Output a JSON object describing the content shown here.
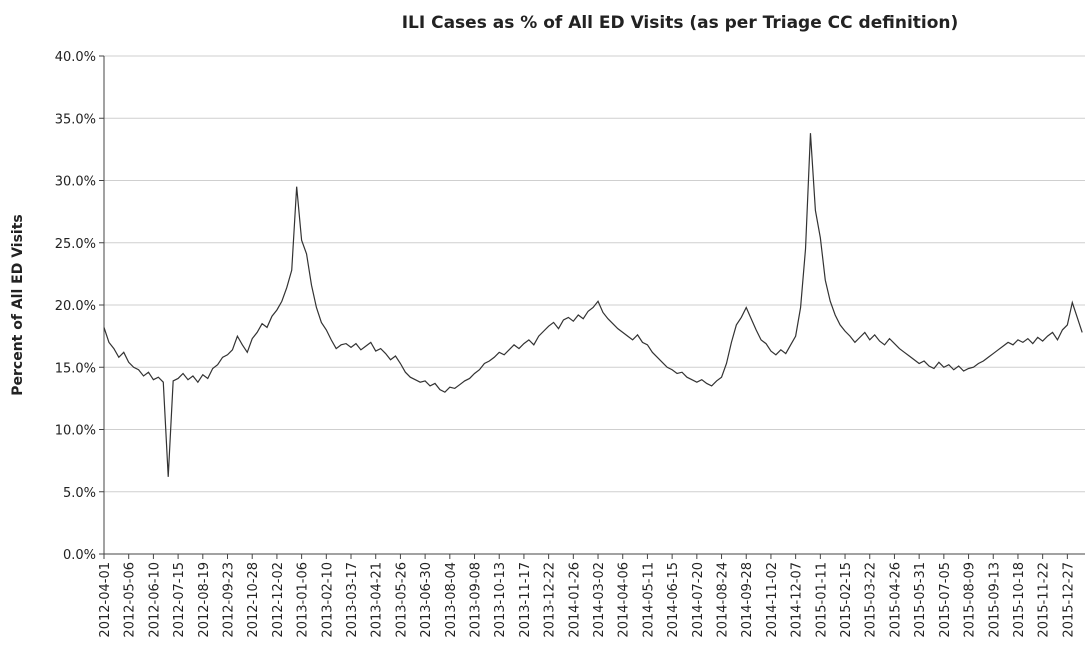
{
  "chart_data": {
    "type": "line",
    "title": "ILI Cases as % of All ED Visits (as per Triage CC definition)",
    "y_label": "Percent of All ED Visits",
    "color": "#333333",
    "grid": true,
    "ylim": [
      0,
      40
    ],
    "yticks": [
      {
        "value": 0,
        "label": "0.0%"
      },
      {
        "value": 5,
        "label": "5.0%"
      },
      {
        "value": 10,
        "label": "10.0%"
      },
      {
        "value": 15,
        "label": "15.0%"
      },
      {
        "value": 20,
        "label": "20.0%"
      },
      {
        "value": 25,
        "label": "25.0%"
      },
      {
        "value": 30,
        "label": "30.0%"
      },
      {
        "value": 35,
        "label": "35.0%"
      },
      {
        "value": 40,
        "label": "40.0%"
      }
    ],
    "xlim": [
      "2012-04-01",
      "2016-01-21"
    ],
    "xticks": [
      "2012-04-01",
      "2012-05-06",
      "2012-06-10",
      "2012-07-15",
      "2012-08-19",
      "2012-09-23",
      "2012-10-28",
      "2012-12-02",
      "2013-01-06",
      "2013-02-10",
      "2013-03-17",
      "2013-04-21",
      "2013-05-26",
      "2013-06-30",
      "2013-08-04",
      "2013-09-08",
      "2013-10-13",
      "2013-11-17",
      "2013-12-22",
      "2014-01-26",
      "2014-03-02",
      "2014-04-06",
      "2014-05-11",
      "2014-06-15",
      "2014-07-20",
      "2014-08-24",
      "2014-09-28",
      "2014-11-02",
      "2014-12-07",
      "2015-01-11",
      "2015-02-15",
      "2015-03-22",
      "2015-04-26",
      "2015-05-31",
      "2015-07-05",
      "2015-08-09",
      "2015-09-13",
      "2015-10-18",
      "2015-11-22",
      "2015-12-27"
    ],
    "x": [
      "2012-04-01",
      "2012-04-08",
      "2012-04-15",
      "2012-04-22",
      "2012-04-29",
      "2012-05-06",
      "2012-05-13",
      "2012-05-20",
      "2012-05-27",
      "2012-06-03",
      "2012-06-10",
      "2012-06-17",
      "2012-06-24",
      "2012-07-01",
      "2012-07-08",
      "2012-07-15",
      "2012-07-22",
      "2012-07-29",
      "2012-08-05",
      "2012-08-12",
      "2012-08-19",
      "2012-08-26",
      "2012-09-02",
      "2012-09-09",
      "2012-09-16",
      "2012-09-23",
      "2012-09-30",
      "2012-10-07",
      "2012-10-14",
      "2012-10-21",
      "2012-10-28",
      "2012-11-04",
      "2012-11-11",
      "2012-11-18",
      "2012-11-25",
      "2012-12-02",
      "2012-12-09",
      "2012-12-16",
      "2012-12-23",
      "2012-12-30",
      "2013-01-06",
      "2013-01-13",
      "2013-01-20",
      "2013-01-27",
      "2013-02-03",
      "2013-02-10",
      "2013-02-17",
      "2013-02-24",
      "2013-03-03",
      "2013-03-10",
      "2013-03-17",
      "2013-03-24",
      "2013-03-31",
      "2013-04-07",
      "2013-04-14",
      "2013-04-21",
      "2013-04-28",
      "2013-05-05",
      "2013-05-12",
      "2013-05-19",
      "2013-05-26",
      "2013-06-02",
      "2013-06-09",
      "2013-06-16",
      "2013-06-23",
      "2013-06-30",
      "2013-07-07",
      "2013-07-14",
      "2013-07-21",
      "2013-07-28",
      "2013-08-04",
      "2013-08-11",
      "2013-08-18",
      "2013-08-25",
      "2013-09-01",
      "2013-09-08",
      "2013-09-15",
      "2013-09-22",
      "2013-09-29",
      "2013-10-06",
      "2013-10-13",
      "2013-10-20",
      "2013-10-27",
      "2013-11-03",
      "2013-11-10",
      "2013-11-17",
      "2013-11-24",
      "2013-12-01",
      "2013-12-08",
      "2013-12-15",
      "2013-12-22",
      "2013-12-29",
      "2014-01-05",
      "2014-01-12",
      "2014-01-19",
      "2014-01-26",
      "2014-02-02",
      "2014-02-09",
      "2014-02-16",
      "2014-02-23",
      "2014-03-02",
      "2014-03-09",
      "2014-03-16",
      "2014-03-23",
      "2014-03-30",
      "2014-04-06",
      "2014-04-13",
      "2014-04-20",
      "2014-04-27",
      "2014-05-04",
      "2014-05-11",
      "2014-05-18",
      "2014-05-25",
      "2014-06-01",
      "2014-06-08",
      "2014-06-15",
      "2014-06-22",
      "2014-06-29",
      "2014-07-06",
      "2014-07-13",
      "2014-07-20",
      "2014-07-27",
      "2014-08-03",
      "2014-08-10",
      "2014-08-17",
      "2014-08-24",
      "2014-08-31",
      "2014-09-07",
      "2014-09-14",
      "2014-09-21",
      "2014-09-28",
      "2014-10-05",
      "2014-10-12",
      "2014-10-19",
      "2014-10-26",
      "2014-11-02",
      "2014-11-09",
      "2014-11-16",
      "2014-11-23",
      "2014-11-30",
      "2014-12-07",
      "2014-12-14",
      "2014-12-21",
      "2014-12-28",
      "2015-01-04",
      "2015-01-11",
      "2015-01-18",
      "2015-01-25",
      "2015-02-01",
      "2015-02-08",
      "2015-02-15",
      "2015-02-22",
      "2015-03-01",
      "2015-03-08",
      "2015-03-15",
      "2015-03-22",
      "2015-03-29",
      "2015-04-05",
      "2015-04-12",
      "2015-04-19",
      "2015-04-26",
      "2015-05-03",
      "2015-05-10",
      "2015-05-17",
      "2015-05-24",
      "2015-05-31",
      "2015-06-07",
      "2015-06-14",
      "2015-06-21",
      "2015-06-28",
      "2015-07-05",
      "2015-07-12",
      "2015-07-19",
      "2015-07-26",
      "2015-08-02",
      "2015-08-09",
      "2015-08-16",
      "2015-08-23",
      "2015-08-30",
      "2015-09-06",
      "2015-09-13",
      "2015-09-20",
      "2015-09-27",
      "2015-10-04",
      "2015-10-11",
      "2015-10-18",
      "2015-10-25",
      "2015-11-01",
      "2015-11-08",
      "2015-11-15",
      "2015-11-22",
      "2015-11-29",
      "2015-12-06",
      "2015-12-13",
      "2015-12-20",
      "2015-12-27",
      "2016-01-03",
      "2016-01-10",
      "2016-01-17"
    ],
    "values": [
      18.2,
      17.0,
      16.5,
      15.8,
      16.2,
      15.4,
      15.0,
      14.8,
      14.3,
      14.6,
      14.0,
      14.2,
      13.8,
      6.2,
      13.9,
      14.1,
      14.5,
      14.0,
      14.3,
      13.8,
      14.4,
      14.1,
      14.9,
      15.2,
      15.8,
      16.0,
      16.4,
      17.5,
      16.8,
      16.2,
      17.3,
      17.8,
      18.5,
      18.2,
      19.1,
      19.6,
      20.3,
      21.4,
      22.8,
      29.5,
      25.2,
      24.1,
      21.6,
      19.8,
      18.6,
      18.0,
      17.2,
      16.5,
      16.8,
      16.9,
      16.6,
      16.9,
      16.4,
      16.7,
      17.0,
      16.3,
      16.5,
      16.1,
      15.6,
      15.9,
      15.3,
      14.6,
      14.2,
      14.0,
      13.8,
      13.9,
      13.5,
      13.7,
      13.2,
      13.0,
      13.4,
      13.3,
      13.6,
      13.9,
      14.1,
      14.5,
      14.8,
      15.3,
      15.5,
      15.8,
      16.2,
      16.0,
      16.4,
      16.8,
      16.5,
      16.9,
      17.2,
      16.8,
      17.5,
      17.9,
      18.3,
      18.6,
      18.1,
      18.8,
      19.0,
      18.7,
      19.2,
      18.9,
      19.5,
      19.8,
      20.3,
      19.4,
      18.9,
      18.5,
      18.1,
      17.8,
      17.5,
      17.2,
      17.6,
      17.0,
      16.8,
      16.2,
      15.8,
      15.4,
      15.0,
      14.8,
      14.5,
      14.6,
      14.2,
      14.0,
      13.8,
      14.0,
      13.7,
      13.5,
      13.9,
      14.2,
      15.3,
      17.0,
      18.4,
      19.0,
      19.8,
      18.9,
      18.0,
      17.2,
      16.9,
      16.3,
      16.0,
      16.4,
      16.1,
      16.8,
      17.5,
      19.8,
      24.5,
      33.8,
      27.6,
      25.4,
      22.0,
      20.3,
      19.2,
      18.4,
      17.9,
      17.5,
      17.0,
      17.4,
      17.8,
      17.2,
      17.6,
      17.1,
      16.8,
      17.3,
      16.9,
      16.5,
      16.2,
      15.9,
      15.6,
      15.3,
      15.5,
      15.1,
      14.9,
      15.4,
      15.0,
      15.2,
      14.8,
      15.1,
      14.7,
      14.9,
      15.0,
      15.3,
      15.5,
      15.8,
      16.1,
      16.4,
      16.7,
      17.0,
      16.8,
      17.2,
      17.0,
      17.3,
      16.9,
      17.4,
      17.1,
      17.5,
      17.8,
      17.2,
      18.0,
      18.4,
      20.2,
      19.0,
      17.8
    ]
  }
}
